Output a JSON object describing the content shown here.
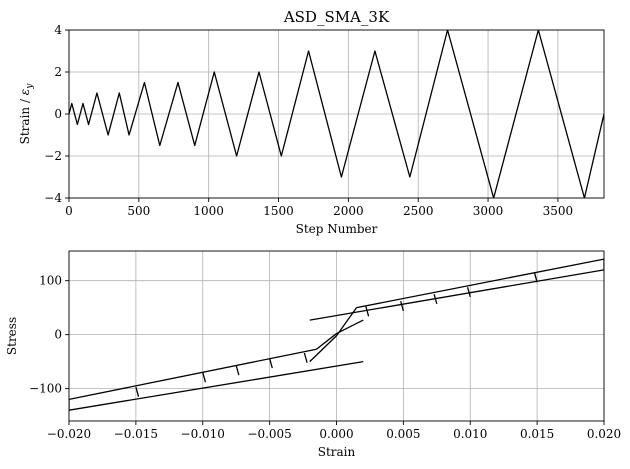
{
  "chart_data": [
    {
      "type": "line",
      "title": "ASD_SMA_3K",
      "xlabel": "Step Number",
      "ylabel": "Strain / ε_y",
      "ylabel_parts": {
        "main": "Strain / ",
        "symbol": "ε",
        "sub": "y"
      },
      "xlim": [
        0,
        3830
      ],
      "ylim": [
        -4,
        4
      ],
      "grid": true,
      "x_ticks": [
        0,
        500,
        1000,
        1500,
        2000,
        2500,
        3000,
        3500
      ],
      "x_tick_labels": [
        "0",
        "500",
        "1000",
        "1500",
        "2000",
        "2500",
        "3000",
        "3500"
      ],
      "y_ticks": [
        -4,
        -2,
        0,
        2,
        4
      ],
      "y_tick_labels": [
        "−4",
        "−2",
        "0",
        "2",
        "4"
      ],
      "series": [
        {
          "color": "#000000",
          "x": [
            0,
            20,
            60,
            100,
            140,
            200,
            280,
            360,
            430,
            540,
            650,
            780,
            900,
            1040,
            1200,
            1360,
            1520,
            1715,
            1950,
            2190,
            2440,
            2710,
            3040,
            3360,
            3690,
            3830
          ],
          "y": [
            0,
            0.5,
            -0.5,
            0.5,
            -0.5,
            1,
            -1,
            1,
            -1,
            1.5,
            -1.5,
            1.5,
            -1.5,
            2,
            -2,
            2,
            -2,
            3,
            -3,
            3,
            -3,
            4,
            -4,
            4,
            -4,
            0
          ]
        }
      ]
    },
    {
      "type": "line",
      "title": "",
      "xlabel": "Strain",
      "ylabel": "Stress",
      "xlim": [
        -0.02,
        0.02
      ],
      "ylim": [
        -160,
        155
      ],
      "grid": true,
      "x_ticks": [
        -0.02,
        -0.015,
        -0.01,
        -0.005,
        0,
        0.005,
        0.01,
        0.015,
        0.02
      ],
      "x_tick_labels": [
        "−0.020",
        "−0.015",
        "−0.010",
        "−0.005",
        "0.000",
        "0.005",
        "0.010",
        "0.015",
        "0.020"
      ],
      "y_ticks": [
        -100,
        0,
        100
      ],
      "y_tick_labels": [
        "−100",
        "0",
        "100"
      ],
      "series": [
        {
          "color": "#000000",
          "x": [
            -0.002,
            0.02
          ],
          "y": [
            27,
            120
          ]
        },
        {
          "color": "#000000",
          "x": [
            0.0015,
            0.02
          ],
          "y": [
            50,
            140
          ]
        },
        {
          "color": "#000000",
          "x": [
            -0.02,
            0.002
          ],
          "y": [
            -140,
            -50
          ]
        },
        {
          "color": "#000000",
          "x": [
            -0.02,
            -0.0015
          ],
          "y": [
            -120,
            -27
          ]
        },
        {
          "color": "#000000",
          "x": [
            -0.002,
            0,
            0.0015
          ],
          "y": [
            -50,
            -2,
            50
          ]
        },
        {
          "color": "#000000",
          "x": [
            -0.0015,
            0,
            0.002
          ],
          "y": [
            -27,
            2,
            27
          ]
        },
        {
          "color": "#000000",
          "x": [
            0.02,
            0.02
          ],
          "y": [
            120,
            140
          ]
        },
        {
          "color": "#000000",
          "x": [
            -0.02,
            -0.02
          ],
          "y": [
            -140,
            -120
          ]
        },
        {
          "color": "#000000",
          "x": [
            0.0022,
            0.0024
          ],
          "y": [
            52,
            34
          ]
        },
        {
          "color": "#000000",
          "x": [
            0.0048,
            0.005
          ],
          "y": [
            62,
            44
          ]
        },
        {
          "color": "#000000",
          "x": [
            0.0073,
            0.0075
          ],
          "y": [
            75,
            57
          ]
        },
        {
          "color": "#000000",
          "x": [
            0.0098,
            0.01
          ],
          "y": [
            88,
            70
          ]
        },
        {
          "color": "#000000",
          "x": [
            0.0148,
            0.015
          ],
          "y": [
            115,
            97
          ]
        },
        {
          "color": "#000000",
          "x": [
            -0.0022,
            -0.0024
          ],
          "y": [
            -52,
            -34
          ]
        },
        {
          "color": "#000000",
          "x": [
            -0.0048,
            -0.005
          ],
          "y": [
            -62,
            -44
          ]
        },
        {
          "color": "#000000",
          "x": [
            -0.0073,
            -0.0075
          ],
          "y": [
            -75,
            -57
          ]
        },
        {
          "color": "#000000",
          "x": [
            -0.0098,
            -0.01
          ],
          "y": [
            -88,
            -70
          ]
        },
        {
          "color": "#000000",
          "x": [
            -0.0148,
            -0.015
          ],
          "y": [
            -115,
            -97
          ]
        }
      ]
    }
  ]
}
